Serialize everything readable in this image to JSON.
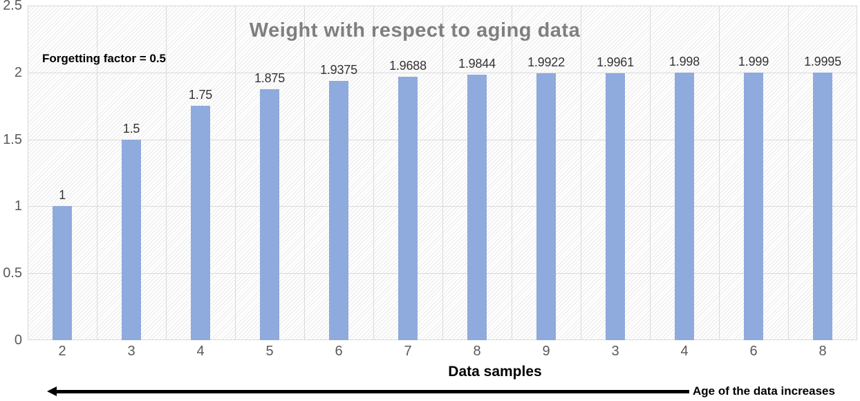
{
  "chart_data": {
    "type": "bar",
    "title": "Weight with respect to aging data",
    "annotation": "Forgetting factor = 0.5",
    "xlabel": "Data samples",
    "arrow_label": "Age of the data increases",
    "categories": [
      "2",
      "3",
      "4",
      "5",
      "6",
      "7",
      "8",
      "9",
      "3",
      "4",
      "6",
      "8"
    ],
    "values": [
      1,
      1.5,
      1.75,
      1.875,
      1.9375,
      1.9688,
      1.9844,
      1.9922,
      1.9961,
      1.998,
      1.999,
      1.9995
    ],
    "value_labels": [
      "1",
      "1.5",
      "1.75",
      "1.875",
      "1.9375",
      "1.9688",
      "1.9844",
      "1.9922",
      "1.9961",
      "1.998",
      "1.999",
      "1.9995"
    ],
    "yticks": [
      "2.5",
      "2",
      "1.5",
      "1",
      "0.5",
      "0"
    ],
    "ylim": [
      0,
      2.5
    ],
    "grid": true,
    "legend": "none",
    "bar_color": "#8faadc",
    "gridline_color": "#d9d9d9",
    "title_color": "#7f7f7f",
    "tick_color": "#595959",
    "data_label_color": "#333333",
    "arrow_color": "#000000"
  }
}
